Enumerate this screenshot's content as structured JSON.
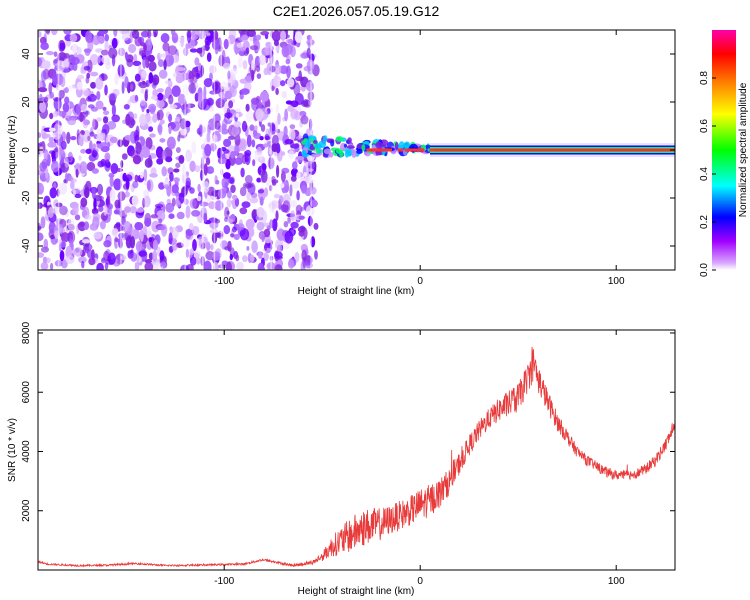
{
  "title": "C2E1.2026.057.05.19.G12",
  "chart_data": [
    {
      "type": "heatmap",
      "xlabel": "Height of straight line (km)",
      "ylabel": "Frequency (Hz)",
      "xlim": [
        -195,
        130
      ],
      "ylim": [
        -50,
        50
      ],
      "xticks": [
        -100,
        0,
        100
      ],
      "yticks": [
        -40,
        -20,
        0,
        20,
        40
      ],
      "noise_region_x": [
        -195,
        -50
      ],
      "signal_line_x": [
        -60,
        130
      ],
      "signal_line_freq": 0,
      "colorbar": {
        "label": "Normalized spectral amplitude",
        "range": [
          0,
          1
        ],
        "ticks": [
          0.0,
          0.2,
          0.4,
          0.6,
          0.8
        ],
        "colors": [
          "#ffffff",
          "#a000ff",
          "#0000ff",
          "#00ffff",
          "#00ff00",
          "#ffff00",
          "#ff8000",
          "#ff0000",
          "#ff00aa"
        ]
      }
    },
    {
      "type": "line",
      "xlabel": "Height of straight line (km)",
      "ylabel": "SNR (10 * v/v)",
      "xlim": [
        -195,
        130
      ],
      "ylim": [
        0,
        8100
      ],
      "xticks": [
        -100,
        0,
        100
      ],
      "yticks": [
        2000,
        4000,
        6000,
        8000
      ],
      "color": "#e83a3a",
      "envelope": {
        "x": [
          -195,
          -190,
          -175,
          -160,
          -150,
          -145,
          -130,
          -110,
          -90,
          -80,
          -75,
          -65,
          -55,
          -50,
          -45,
          -40,
          -35,
          -30,
          -25,
          -20,
          -15,
          -10,
          -5,
          0,
          5,
          10,
          15,
          20,
          25,
          30,
          35,
          40,
          45,
          50,
          55,
          58,
          60,
          65,
          70,
          75,
          80,
          85,
          90,
          95,
          100,
          105,
          110,
          115,
          120,
          125,
          130
        ],
        "y": [
          280,
          200,
          150,
          160,
          200,
          220,
          150,
          170,
          200,
          350,
          280,
          150,
          250,
          450,
          800,
          1000,
          1200,
          1400,
          1500,
          1550,
          1700,
          1850,
          2000,
          2200,
          2350,
          2600,
          3000,
          3600,
          4200,
          4700,
          5100,
          5400,
          5600,
          5800,
          6500,
          7000,
          6500,
          5700,
          5000,
          4500,
          4000,
          3700,
          3500,
          3300,
          3200,
          3200,
          3250,
          3400,
          3700,
          4200,
          4900
        ],
        "noise_amplitude": [
          30,
          30,
          30,
          30,
          30,
          30,
          30,
          30,
          30,
          40,
          40,
          40,
          60,
          150,
          350,
          500,
          600,
          650,
          600,
          550,
          500,
          500,
          500,
          550,
          550,
          500,
          450,
          400,
          350,
          350,
          350,
          400,
          450,
          500,
          500,
          600,
          500,
          400,
          300,
          250,
          200,
          180,
          170,
          170,
          160,
          160,
          170,
          180,
          200,
          220,
          230
        ]
      }
    }
  ]
}
